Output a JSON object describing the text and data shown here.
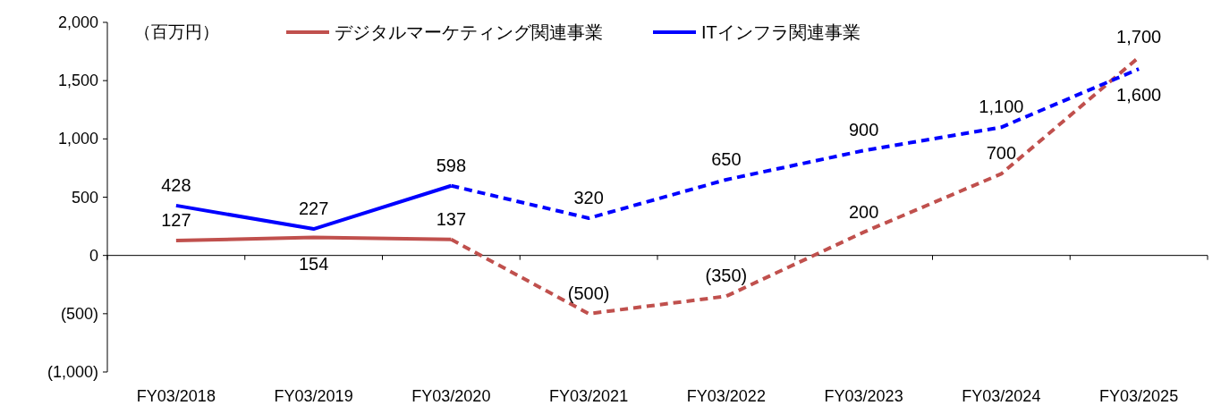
{
  "chart_data": {
    "type": "line",
    "categories": [
      "FY03/2018",
      "FY03/2019",
      "FY03/2020",
      "FY03/2021",
      "FY03/2022",
      "FY03/2023",
      "FY03/2024",
      "FY03/2025"
    ],
    "series": [
      {
        "name": "デジタルマーケティング関連事業",
        "color": "#c0504d",
        "line_style": "solid",
        "values": [
          127,
          154,
          137,
          null,
          null,
          null,
          null,
          null
        ],
        "value_labels": [
          "127",
          "154",
          "137",
          null,
          null,
          null,
          null,
          null
        ]
      },
      {
        "name": "ITインフラ関連事業",
        "color": "#0000ff",
        "line_style": "solid",
        "values": [
          428,
          227,
          598,
          null,
          null,
          null,
          null,
          null
        ],
        "value_labels": [
          "428",
          "227",
          "598",
          null,
          null,
          null,
          null,
          null
        ]
      },
      {
        "color": "#c0504d",
        "line_style": "dashed",
        "values": [
          null,
          null,
          137,
          -500,
          -350,
          200,
          700,
          1700
        ],
        "value_labels": [
          null,
          null,
          null,
          "(500)",
          "(350)",
          "200",
          "700",
          "1,700"
        ]
      },
      {
        "color": "#0000ff",
        "line_style": "dashed",
        "values": [
          null,
          null,
          598,
          320,
          650,
          900,
          1100,
          1600
        ],
        "value_labels": [
          null,
          null,
          null,
          "320",
          "650",
          "900",
          "1,100",
          "1,600"
        ]
      }
    ],
    "ylim": [
      -1000,
      2000
    ],
    "yticks": [
      {
        "value": -1000,
        "label": "(1,000)"
      },
      {
        "value": -500,
        "label": "(500)"
      },
      0,
      {
        "value": 500,
        "label": "500"
      },
      {
        "value": 1000,
        "label": "1,000"
      },
      {
        "value": 1500,
        "label": "1,500"
      },
      {
        "value": 2000,
        "label": "2,000"
      }
    ],
    "annotations": [
      "（百万円）"
    ],
    "legend": "top",
    "marker": "none"
  }
}
